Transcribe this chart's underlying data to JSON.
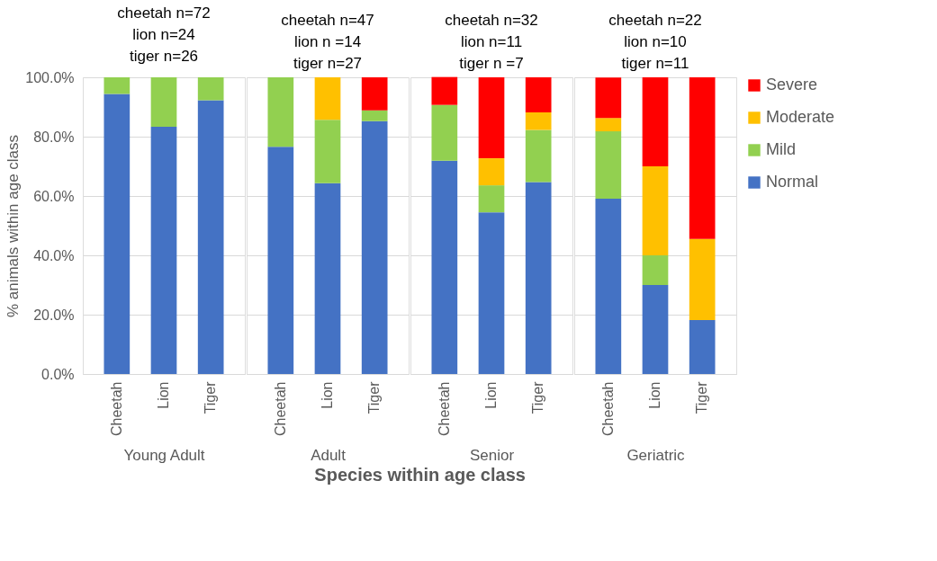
{
  "chart_data": [
    {
      "type": "bar",
      "stacked": true,
      "title": "cheetah n=72\nlion n=24\ntiger n=26",
      "xlabel": "Young Adult",
      "ylabel": "% animals within age class",
      "legend": "right",
      "annotations": [
        "Species within age class"
      ],
      "categories": [
        "Cheetah",
        "Lion",
        "Tiger"
      ],
      "ylim": [
        0,
        100
      ],
      "yticks": [
        {
          "value": 0,
          "label": "0.0%"
        },
        {
          "value": 20,
          "label": "20.0%"
        },
        {
          "value": 40,
          "label": "40.0%"
        },
        {
          "value": 60,
          "label": "60.0%"
        },
        {
          "value": 80,
          "label": "80.0%"
        },
        {
          "value": 100,
          "label": "100.0%"
        }
      ],
      "grid": "y",
      "series": [
        {
          "name": "Normal",
          "color": "#4472c4",
          "values": [
            94.4,
            83.3,
            92.3
          ]
        },
        {
          "name": "Mild",
          "color": "#92d050",
          "values": [
            5.6,
            16.7,
            7.7
          ]
        },
        {
          "name": "Moderate",
          "color": "#ffc000",
          "values": [
            null,
            null,
            null
          ]
        },
        {
          "name": "Severe",
          "color": "#ff0000",
          "values": [
            null,
            null,
            null
          ]
        }
      ]
    },
    {
      "type": "bar",
      "stacked": true,
      "title": "cheetah n=47\nlion n =14\ntiger n=27",
      "xlabel": "Adult",
      "categories": [
        "Cheetah",
        "Lion",
        "Tiger"
      ],
      "ylim": [
        0,
        100
      ],
      "yticks": [
        0,
        20,
        40,
        60,
        80,
        100
      ],
      "tick_labels": "x",
      "grid": "y",
      "series": [
        {
          "color": "#4472c4",
          "values": [
            76.6,
            64.3,
            85.2
          ]
        },
        {
          "color": "#92d050",
          "values": [
            23.4,
            21.4,
            3.7
          ]
        },
        {
          "color": "#ffc000",
          "values": [
            null,
            14.3,
            null
          ]
        },
        {
          "color": "#ff0000",
          "values": [
            null,
            null,
            11.1
          ]
        }
      ]
    },
    {
      "type": "bar",
      "stacked": true,
      "title": "cheetah n=32\nlion n=11\ntiger n =7",
      "xlabel": "Senior",
      "categories": [
        "Cheetah",
        "Lion",
        "Tiger"
      ],
      "ylim": [
        0,
        100
      ],
      "yticks": [
        0,
        20,
        40,
        60,
        80,
        100
      ],
      "tick_labels": "x",
      "grid": "y",
      "series": [
        {
          "color": "#4472c4",
          "values": [
            71.9,
            54.5,
            64.7
          ]
        },
        {
          "color": "#92d050",
          "values": [
            18.8,
            9.1,
            17.6
          ]
        },
        {
          "color": "#ffc000",
          "values": [
            null,
            9.1,
            5.9
          ]
        },
        {
          "color": "#ff0000",
          "values": [
            9.4,
            27.3,
            11.8
          ]
        }
      ]
    },
    {
      "type": "bar",
      "stacked": true,
      "title": "cheetah n=22\nlion n=10\ntiger n=11",
      "xlabel": "Geriatric",
      "categories": [
        "Cheetah",
        "Lion",
        "Tiger"
      ],
      "ylim": [
        0,
        100
      ],
      "yticks": [
        0,
        20,
        40,
        60,
        80,
        100
      ],
      "tick_labels": "x",
      "grid": "y",
      "series": [
        {
          "color": "#4472c4",
          "values": [
            59.1,
            30,
            18.2
          ]
        },
        {
          "color": "#92d050",
          "values": [
            22.7,
            10,
            null
          ]
        },
        {
          "color": "#ffc000",
          "values": [
            4.5,
            30,
            27.3
          ]
        },
        {
          "color": "#ff0000",
          "values": [
            13.6,
            30,
            54.5
          ]
        }
      ]
    }
  ]
}
